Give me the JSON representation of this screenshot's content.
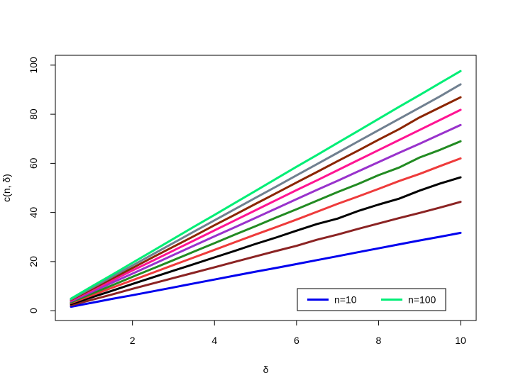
{
  "chart_data": {
    "type": "line",
    "title": "",
    "xlabel": "δ",
    "ylabel": "c(n, δ)",
    "xlim": [
      0.12,
      10.38
    ],
    "ylim": [
      -4,
      104
    ],
    "xticks": [
      2,
      4,
      6,
      8,
      10
    ],
    "yticks": [
      0,
      20,
      40,
      60,
      80,
      100
    ],
    "grid": false,
    "legend": {
      "placement": "bottom-right",
      "entries": [
        {
          "label": "n=10",
          "color": "#0000ee"
        },
        {
          "label": "n=100",
          "color": "#00ee76"
        }
      ]
    },
    "x": [
      0.5,
      1,
      1.5,
      2,
      2.5,
      3,
      3.5,
      4,
      4.5,
      5,
      5.5,
      6,
      6.5,
      7,
      7.5,
      8,
      8.5,
      9,
      9.5,
      10
    ],
    "series": [
      {
        "name": "n=10",
        "color": "#0000ee",
        "values": [
          1.6,
          3.2,
          4.8,
          6.3,
          7.9,
          9.5,
          11.1,
          12.7,
          14.3,
          15.9,
          17.4,
          19.0,
          20.6,
          22.2,
          23.8,
          25.4,
          27.0,
          28.6,
          30.1,
          31.7
        ]
      },
      {
        "color": "#8b2323",
        "values": [
          2.2,
          4.4,
          6.6,
          8.9,
          11.1,
          13.3,
          15.5,
          17.7,
          19.9,
          22.1,
          24.3,
          26.4,
          28.9,
          31.0,
          33.3,
          35.5,
          37.7,
          39.8,
          42.0,
          44.3
        ]
      },
      {
        "color": "#000000",
        "values": [
          2.7,
          5.4,
          8.1,
          10.9,
          13.6,
          16.3,
          19.0,
          21.7,
          24.4,
          27.2,
          29.8,
          32.6,
          35.3,
          37.5,
          40.6,
          43.2,
          45.6,
          48.9,
          51.8,
          54.3
        ]
      },
      {
        "color": "#ee3b3b",
        "values": [
          3.1,
          6.2,
          9.3,
          12.4,
          15.5,
          18.6,
          21.7,
          24.8,
          27.9,
          31.0,
          34.0,
          37.1,
          40.3,
          43.5,
          46.5,
          49.6,
          52.8,
          55.7,
          58.9,
          62.0
        ]
      },
      {
        "color": "#228b22",
        "values": [
          3.4,
          6.9,
          10.3,
          13.8,
          17.2,
          20.6,
          24.1,
          27.5,
          31.0,
          34.4,
          37.9,
          41.3,
          44.8,
          48.3,
          51.6,
          55.2,
          58.3,
          62.4,
          65.5,
          69.0
        ]
      },
      {
        "color": "#9932cc",
        "values": [
          3.8,
          7.6,
          11.4,
          15.1,
          18.9,
          22.7,
          26.5,
          30.3,
          34.0,
          37.8,
          41.6,
          45.4,
          49.2,
          52.9,
          56.7,
          60.5,
          64.3,
          68.0,
          71.8,
          75.6
        ]
      },
      {
        "color": "#ff1493",
        "values": [
          4.1,
          8.2,
          12.3,
          16.4,
          20.4,
          24.5,
          28.6,
          32.7,
          36.8,
          40.9,
          45.0,
          49.1,
          53.1,
          57.2,
          61.3,
          65.4,
          69.5,
          73.6,
          77.7,
          81.8
        ]
      },
      {
        "color": "#8b2500",
        "values": [
          4.4,
          8.7,
          13.1,
          17.4,
          21.8,
          26.1,
          30.4,
          34.8,
          39.1,
          43.5,
          47.8,
          52.2,
          56.5,
          60.9,
          65.2,
          69.6,
          73.9,
          78.7,
          82.8,
          86.9
        ]
      },
      {
        "color": "#708090",
        "values": [
          4.6,
          9.2,
          13.8,
          18.4,
          23.0,
          27.6,
          32.2,
          36.8,
          41.4,
          46.0,
          50.5,
          55.1,
          59.7,
          64.3,
          68.9,
          73.5,
          78.1,
          82.7,
          87.3,
          92.2
        ]
      },
      {
        "name": "n=100",
        "color": "#00ee76",
        "values": [
          4.9,
          9.8,
          14.6,
          19.5,
          24.4,
          29.3,
          34.2,
          39.0,
          43.9,
          48.8,
          53.7,
          58.6,
          63.4,
          68.3,
          73.2,
          78.1,
          83.0,
          87.8,
          92.7,
          97.6
        ]
      }
    ]
  }
}
